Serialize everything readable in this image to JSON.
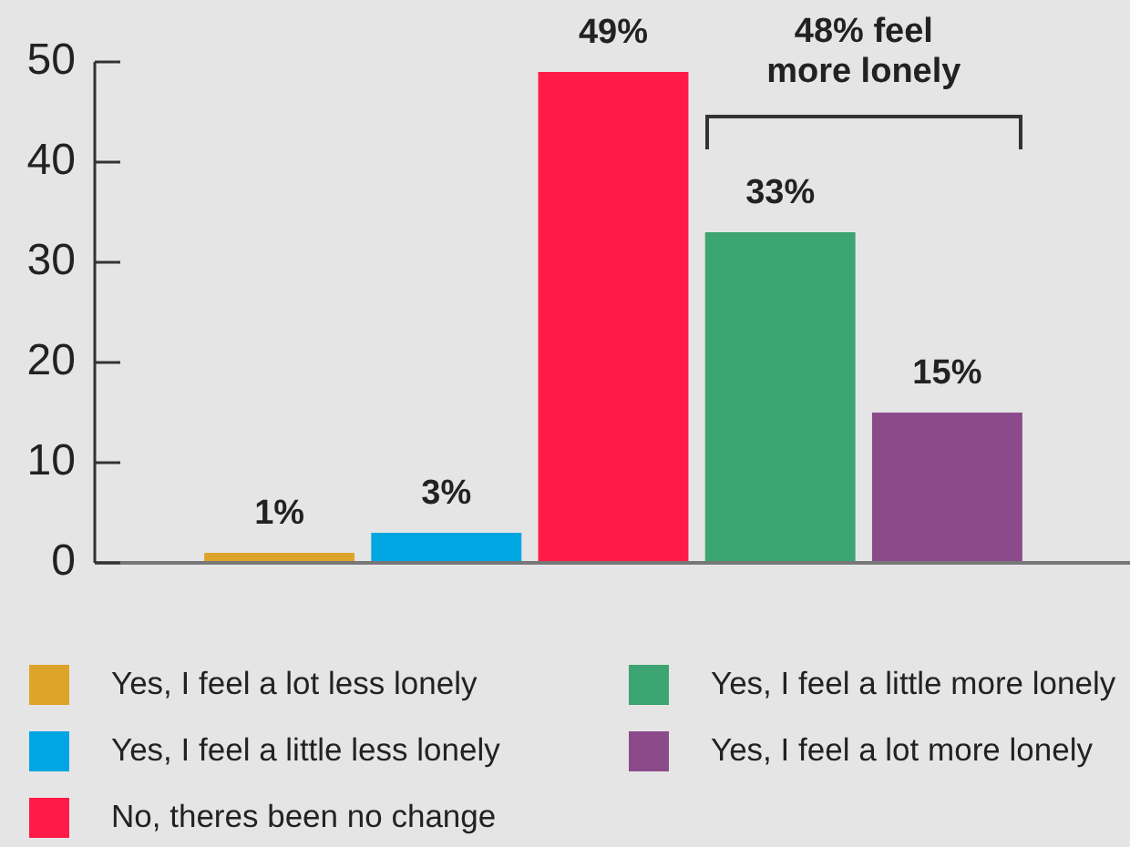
{
  "chart_data": {
    "type": "bar",
    "categories": [
      null,
      null,
      null,
      null,
      null
    ],
    "series": [
      {
        "name": "Yes, I feel a lot less lonely",
        "color": "#dea42a",
        "values": [
          1,
          null,
          null,
          null,
          null
        ],
        "value_labels": [
          "1%",
          null,
          null,
          null,
          null
        ]
      },
      {
        "name": "Yes, I feel a little less lonely",
        "color": "#00a6e2",
        "values": [
          null,
          3,
          null,
          null,
          null
        ],
        "value_labels": [
          null,
          "3%",
          null,
          null,
          null
        ]
      },
      {
        "name": "No, theres been no change",
        "color": "#ff1a48",
        "values": [
          null,
          null,
          49,
          null,
          null
        ],
        "value_labels": [
          null,
          null,
          "49%",
          null,
          null
        ]
      },
      {
        "name": "Yes, I feel a little more lonely",
        "color": "#3ca571",
        "values": [
          null,
          null,
          null,
          33,
          null
        ],
        "value_labels": [
          null,
          null,
          null,
          "33%",
          null
        ]
      },
      {
        "name": "Yes, I feel a lot more lonely",
        "color": "#8b4b8b",
        "values": [
          null,
          null,
          null,
          null,
          15
        ],
        "value_labels": [
          null,
          null,
          null,
          null,
          "15%"
        ]
      }
    ],
    "ylim": [
      0,
      50
    ],
    "yticks": [
      0,
      10,
      20,
      30,
      40,
      50
    ],
    "grid": false,
    "legend": "bottom",
    "annotations": [
      "48% feel more lonely"
    ]
  }
}
